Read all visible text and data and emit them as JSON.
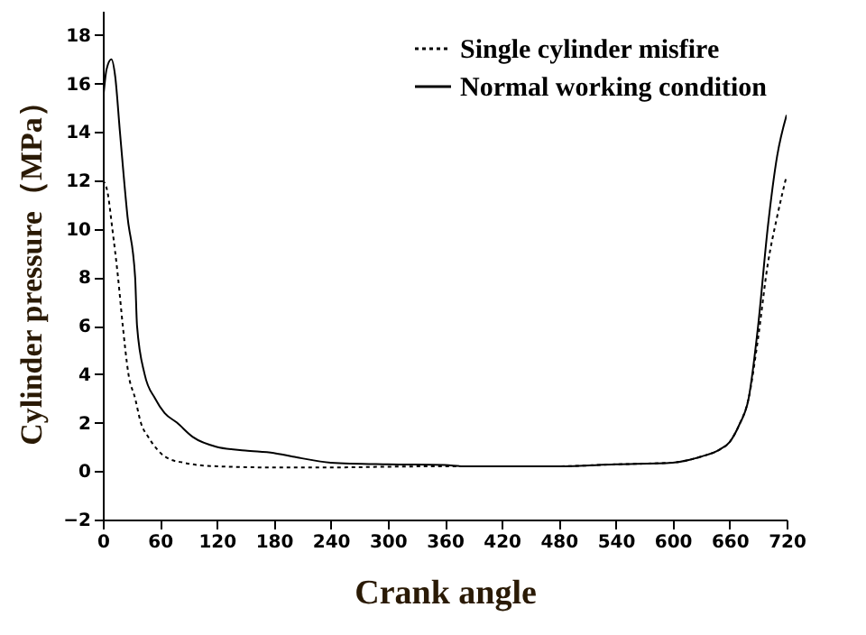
{
  "chart_data": {
    "type": "line",
    "xlabel": "Crank angle",
    "ylabel": "Cylinder pressure（MPa）",
    "xlim": [
      0,
      720
    ],
    "xticks": [
      0,
      60,
      120,
      180,
      240,
      300,
      360,
      420,
      480,
      540,
      600,
      660,
      720
    ],
    "ylim": [
      -2,
      19
    ],
    "yticks": [
      -2,
      0,
      2,
      4,
      6,
      8,
      10,
      12,
      14,
      16,
      18
    ],
    "grid": false,
    "legend": "top right",
    "series": [
      {
        "name": "Single cylinder misfire",
        "color": "#000000",
        "line_style": "dotted",
        "x": [
          0,
          5,
          10,
          16,
          21,
          27,
          34,
          40,
          48,
          55,
          62,
          70,
          85,
          100,
          120,
          180,
          240,
          300,
          360,
          420,
          480,
          540,
          600,
          630,
          650,
          660,
          670,
          680,
          690,
          700,
          710,
          720
        ],
        "values": [
          12,
          11.5,
          10,
          8,
          6,
          4,
          3,
          2,
          1.4,
          1,
          0.7,
          0.5,
          0.35,
          0.25,
          0.2,
          0.15,
          0.15,
          0.18,
          0.2,
          0.2,
          0.2,
          0.28,
          0.35,
          0.6,
          0.9,
          1.2,
          1.9,
          3,
          5.5,
          8.5,
          10.5,
          12.2
        ]
      },
      {
        "name": "Normal working condition",
        "color": "#000000",
        "line_style": "solid",
        "x": [
          0,
          4,
          9,
          13,
          18,
          26,
          34,
          36,
          44,
          55,
          65,
          78,
          95,
          120,
          150,
          180,
          200,
          240,
          300,
          360,
          380,
          420,
          480,
          540,
          600,
          630,
          650,
          660,
          670,
          680,
          690,
          700,
          710,
          720
        ],
        "values": [
          15.2,
          16.6,
          17,
          16.3,
          14,
          10.5,
          8,
          6,
          4,
          3,
          2.4,
          2,
          1.4,
          1,
          0.85,
          0.75,
          0.6,
          0.35,
          0.28,
          0.25,
          0.2,
          0.2,
          0.2,
          0.28,
          0.35,
          0.6,
          0.9,
          1.2,
          1.9,
          3,
          6,
          10,
          13,
          14.7
        ]
      }
    ]
  }
}
